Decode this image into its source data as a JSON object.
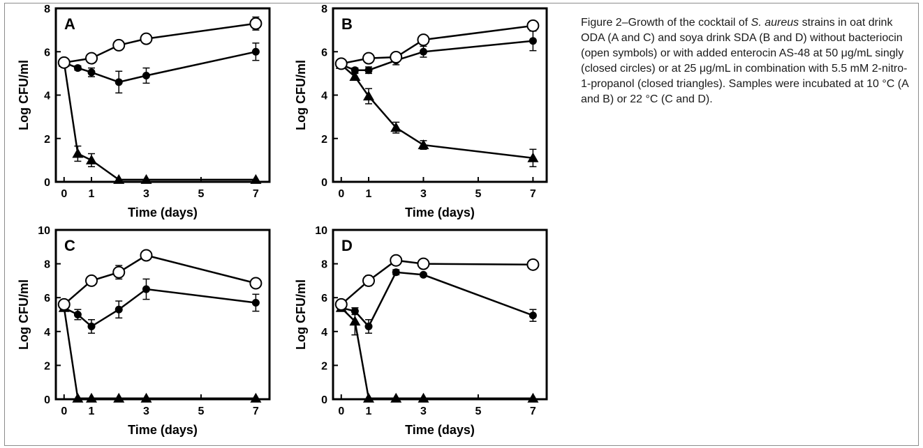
{
  "caption": {
    "part1": "Figure 2–Growth of the cocktail of ",
    "species": "S. aureus",
    "part2": " strains in oat drink ODA (A and C) and soya drink SDA (B and D) without bacteriocin (open symbols) or with added enterocin AS-48 at 50 μg/mL singly (closed circles) or at 25 μg/mL in combination with 5.5 mM 2-nitro-1-propanol (closed triangles). Samples were incubated at 10 °C (A and B) or 22 °C (C and D)."
  },
  "chart_data": [
    {
      "type": "line",
      "panel": "A",
      "xlabel": "Time (days)",
      "ylabel": "Log CFU/ml",
      "xlim": [
        -0.3,
        7.5
      ],
      "ylim": [
        0,
        8
      ],
      "xticks": [
        0,
        1,
        3,
        5,
        7
      ],
      "yticks": [
        0,
        2,
        4,
        6,
        8
      ],
      "series": [
        {
          "marker": "open-circle",
          "x": [
            0,
            1,
            2,
            3,
            7
          ],
          "y": [
            5.5,
            5.7,
            6.3,
            6.6,
            7.3
          ],
          "err": [
            0.1,
            0.15,
            0.2,
            0.2,
            0.3
          ]
        },
        {
          "marker": "closed-circle",
          "x": [
            0,
            0.5,
            1,
            2,
            3,
            7
          ],
          "y": [
            5.5,
            5.25,
            5.05,
            4.6,
            4.9,
            6.0
          ],
          "err": [
            0.1,
            0.1,
            0.2,
            0.5,
            0.35,
            0.4
          ]
        },
        {
          "marker": "closed-triangle",
          "x": [
            0,
            0.5,
            1,
            2,
            3,
            7
          ],
          "y": [
            5.5,
            1.3,
            1.0,
            0.1,
            0.1,
            0.1
          ],
          "err": [
            0,
            0.35,
            0.3,
            0,
            0,
            0
          ]
        }
      ]
    },
    {
      "type": "line",
      "panel": "B",
      "xlabel": "Time (days)",
      "ylabel": "Log CFU/ml",
      "xlim": [
        -0.3,
        7.5
      ],
      "ylim": [
        0,
        8
      ],
      "xticks": [
        0,
        1,
        3,
        5,
        7
      ],
      "yticks": [
        0,
        2,
        4,
        6,
        8
      ],
      "series": [
        {
          "marker": "open-circle",
          "x": [
            0,
            1,
            2,
            3,
            7
          ],
          "y": [
            5.45,
            5.7,
            5.75,
            6.55,
            7.2
          ],
          "err": [
            0.15,
            0.15,
            0.2,
            0.15,
            0.2
          ]
        },
        {
          "marker": "closed-circle",
          "x": [
            0,
            0.5,
            1,
            2,
            3,
            7
          ],
          "y": [
            5.4,
            5.15,
            5.15,
            5.6,
            6.0,
            6.5
          ],
          "err": [
            0.15,
            0.1,
            0.15,
            0.2,
            0.25,
            0.45
          ]
        },
        {
          "marker": "closed-triangle",
          "x": [
            0,
            0.5,
            1,
            2,
            3,
            7
          ],
          "y": [
            5.4,
            4.85,
            3.95,
            2.5,
            1.7,
            1.1
          ],
          "err": [
            0,
            0.15,
            0.35,
            0.25,
            0.2,
            0.4
          ]
        }
      ]
    },
    {
      "type": "line",
      "panel": "C",
      "xlabel": "Time (days)",
      "ylabel": "Log CFU/ml",
      "xlim": [
        -0.3,
        7.5
      ],
      "ylim": [
        0,
        10
      ],
      "xticks": [
        0,
        1,
        3,
        5,
        7
      ],
      "yticks": [
        0,
        2,
        4,
        6,
        8,
        10
      ],
      "series": [
        {
          "marker": "open-circle",
          "x": [
            0,
            1,
            2,
            3,
            7
          ],
          "y": [
            5.6,
            7.0,
            7.5,
            8.5,
            6.85
          ],
          "err": [
            0.15,
            0.2,
            0.4,
            0.2,
            0.2
          ]
        },
        {
          "marker": "closed-circle",
          "x": [
            0,
            0.5,
            1,
            2,
            3,
            7
          ],
          "y": [
            5.4,
            5.0,
            4.3,
            5.3,
            6.5,
            5.7
          ],
          "err": [
            0.15,
            0.3,
            0.4,
            0.5,
            0.6,
            0.5
          ]
        },
        {
          "marker": "closed-triangle",
          "x": [
            0,
            0.5,
            1,
            2,
            3,
            7
          ],
          "y": [
            5.4,
            0.05,
            0.05,
            0.05,
            0.05,
            0.05
          ],
          "err": [
            0,
            0,
            0,
            0,
            0,
            0
          ]
        }
      ]
    },
    {
      "type": "line",
      "panel": "D",
      "xlabel": "Time (days)",
      "ylabel": "Log CFU/ml",
      "xlim": [
        -0.3,
        7.5
      ],
      "ylim": [
        0,
        10
      ],
      "xticks": [
        0,
        1,
        3,
        5,
        7
      ],
      "yticks": [
        0,
        2,
        4,
        6,
        8,
        10
      ],
      "series": [
        {
          "marker": "open-circle",
          "x": [
            0,
            1,
            2,
            3,
            7
          ],
          "y": [
            5.6,
            7.0,
            8.2,
            8.0,
            7.95
          ],
          "err": [
            0.15,
            0.3,
            0.15,
            0.1,
            0.15
          ]
        },
        {
          "marker": "closed-circle",
          "x": [
            0,
            0.5,
            1,
            2,
            3,
            7
          ],
          "y": [
            5.4,
            5.2,
            4.3,
            7.5,
            7.35,
            4.95
          ],
          "err": [
            0.15,
            0.2,
            0.4,
            0.15,
            0.1,
            0.35
          ]
        },
        {
          "marker": "closed-triangle",
          "x": [
            0,
            0.5,
            1,
            2,
            3,
            7
          ],
          "y": [
            5.4,
            4.6,
            0.05,
            0.05,
            0.05,
            0.05
          ],
          "err": [
            0,
            0.8,
            0,
            0,
            0,
            0
          ]
        }
      ]
    }
  ]
}
